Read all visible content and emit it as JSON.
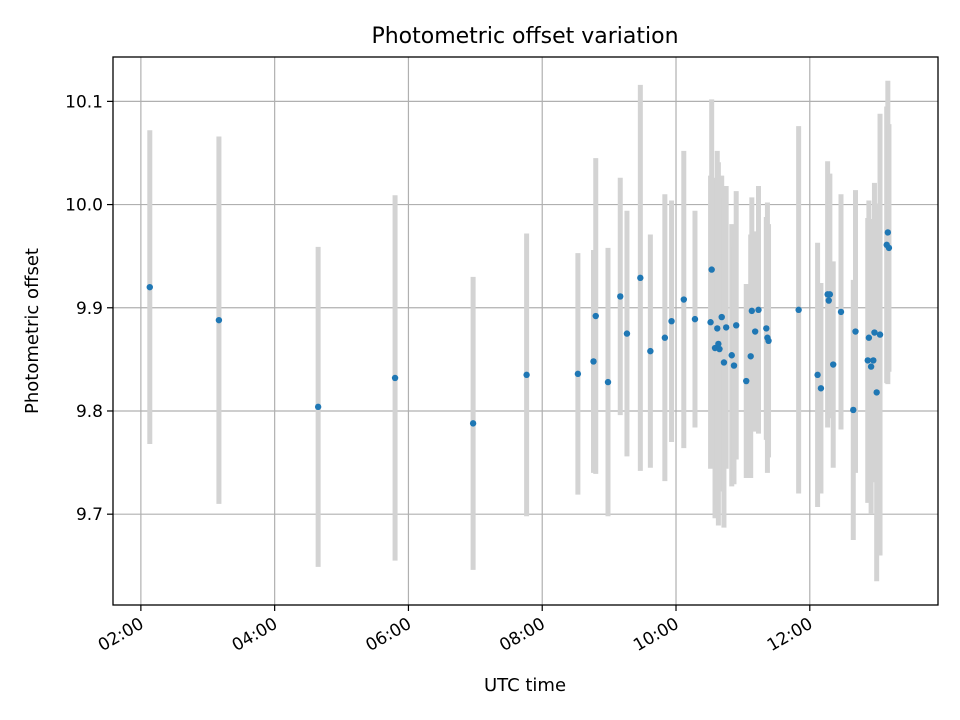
{
  "chart_data": {
    "type": "scatter",
    "title": "Photometric offset variation",
    "xlabel": "UTC time",
    "ylabel": "Photometric offset",
    "xlim": [
      "01:35",
      "13:55"
    ],
    "ylim": [
      9.612,
      10.143
    ],
    "grid": true,
    "x_ticks": [
      "02:00",
      "04:00",
      "06:00",
      "08:00",
      "10:00",
      "12:00"
    ],
    "y_ticks": [
      "9.7",
      "9.8",
      "9.9",
      "10.0",
      "10.1"
    ],
    "colors": {
      "points": "#1f77b4",
      "errorbars": "#d3d3d3"
    },
    "series": [
      {
        "x": [
          "02:08",
          "03:10",
          "04:39",
          "05:48",
          "06:58",
          "07:46",
          "08:32",
          "08:46",
          "08:48",
          "08:59",
          "09:10",
          "09:16",
          "09:28",
          "09:37",
          "09:50",
          "09:56",
          "10:07",
          "10:17",
          "10:31",
          "10:32",
          "10:35",
          "10:37",
          "10:38",
          "10:39",
          "10:41",
          "10:43",
          "10:45",
          "10:50",
          "10:52",
          "10:54",
          "11:03",
          "11:07",
          "11:08",
          "11:11",
          "11:14",
          "11:21",
          "11:22",
          "11:23",
          "11:50",
          "12:07",
          "12:10",
          "12:16",
          "12:17",
          "12:18",
          "12:21",
          "12:28",
          "12:39",
          "12:41",
          "12:52",
          "12:53",
          "12:55",
          "12:57",
          "12:58",
          "13:00",
          "13:03",
          "13:09",
          "13:10",
          "13:11"
        ],
        "y": [
          9.92,
          9.888,
          9.804,
          9.832,
          9.788,
          9.835,
          9.836,
          9.848,
          9.892,
          9.828,
          9.911,
          9.875,
          9.929,
          9.858,
          9.871,
          9.887,
          9.908,
          9.889,
          9.886,
          9.937,
          9.861,
          9.88,
          9.865,
          9.86,
          9.891,
          9.847,
          9.881,
          9.854,
          9.844,
          9.883,
          9.829,
          9.853,
          9.897,
          9.877,
          9.898,
          9.88,
          9.871,
          9.868,
          9.898,
          9.835,
          9.822,
          9.913,
          9.907,
          9.913,
          9.845,
          9.896,
          9.801,
          9.877,
          9.849,
          9.871,
          9.843,
          9.849,
          9.876,
          9.818,
          9.874,
          9.961,
          9.973,
          9.958
        ],
        "err": [
          0.152,
          0.178,
          0.155,
          0.177,
          0.142,
          0.137,
          0.117,
          0.108,
          0.153,
          0.13,
          0.115,
          0.119,
          0.187,
          0.113,
          0.139,
          0.117,
          0.144,
          0.105,
          0.142,
          0.165,
          0.165,
          0.172,
          0.176,
          0.138,
          0.137,
          0.16,
          0.137,
          0.127,
          0.115,
          0.13,
          0.094,
          0.118,
          0.11,
          0.097,
          0.12,
          0.108,
          0.131,
          0.113,
          0.178,
          0.128,
          0.102,
          0.129,
          0.114,
          0.117,
          0.1,
          0.114,
          0.126,
          0.137,
          0.138,
          0.133,
          0.143,
          0.112,
          0.145,
          0.183,
          0.214,
          0.134,
          0.147,
          0.12
        ]
      }
    ]
  }
}
